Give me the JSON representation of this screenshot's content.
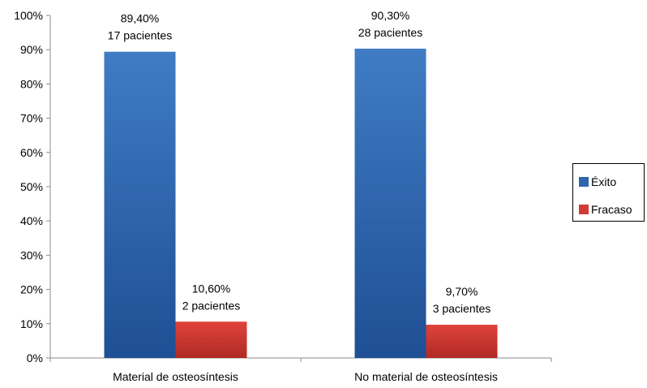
{
  "chart_data": {
    "type": "bar",
    "categories": [
      "Material de osteosíntesis",
      "No material de osteosíntesis"
    ],
    "series": [
      {
        "name": "Éxito",
        "color": "#2f66ad",
        "values": [
          89.4,
          90.3
        ],
        "labels": [
          [
            "89,40%",
            "17 pacientes"
          ],
          [
            "90,30%",
            "28 pacientes"
          ]
        ]
      },
      {
        "name": "Fracaso",
        "color": "#d23a33",
        "values": [
          10.6,
          9.7
        ],
        "labels": [
          [
            "10,60%",
            "2 pacientes"
          ],
          [
            "9,70%",
            "3 pacientes"
          ]
        ]
      }
    ],
    "ylim": [
      0,
      100
    ],
    "yticks": [
      "0%",
      "10%",
      "20%",
      "30%",
      "40%",
      "50%",
      "60%",
      "70%",
      "80%",
      "90%",
      "100%"
    ],
    "grid": false,
    "legend_position": "right"
  }
}
